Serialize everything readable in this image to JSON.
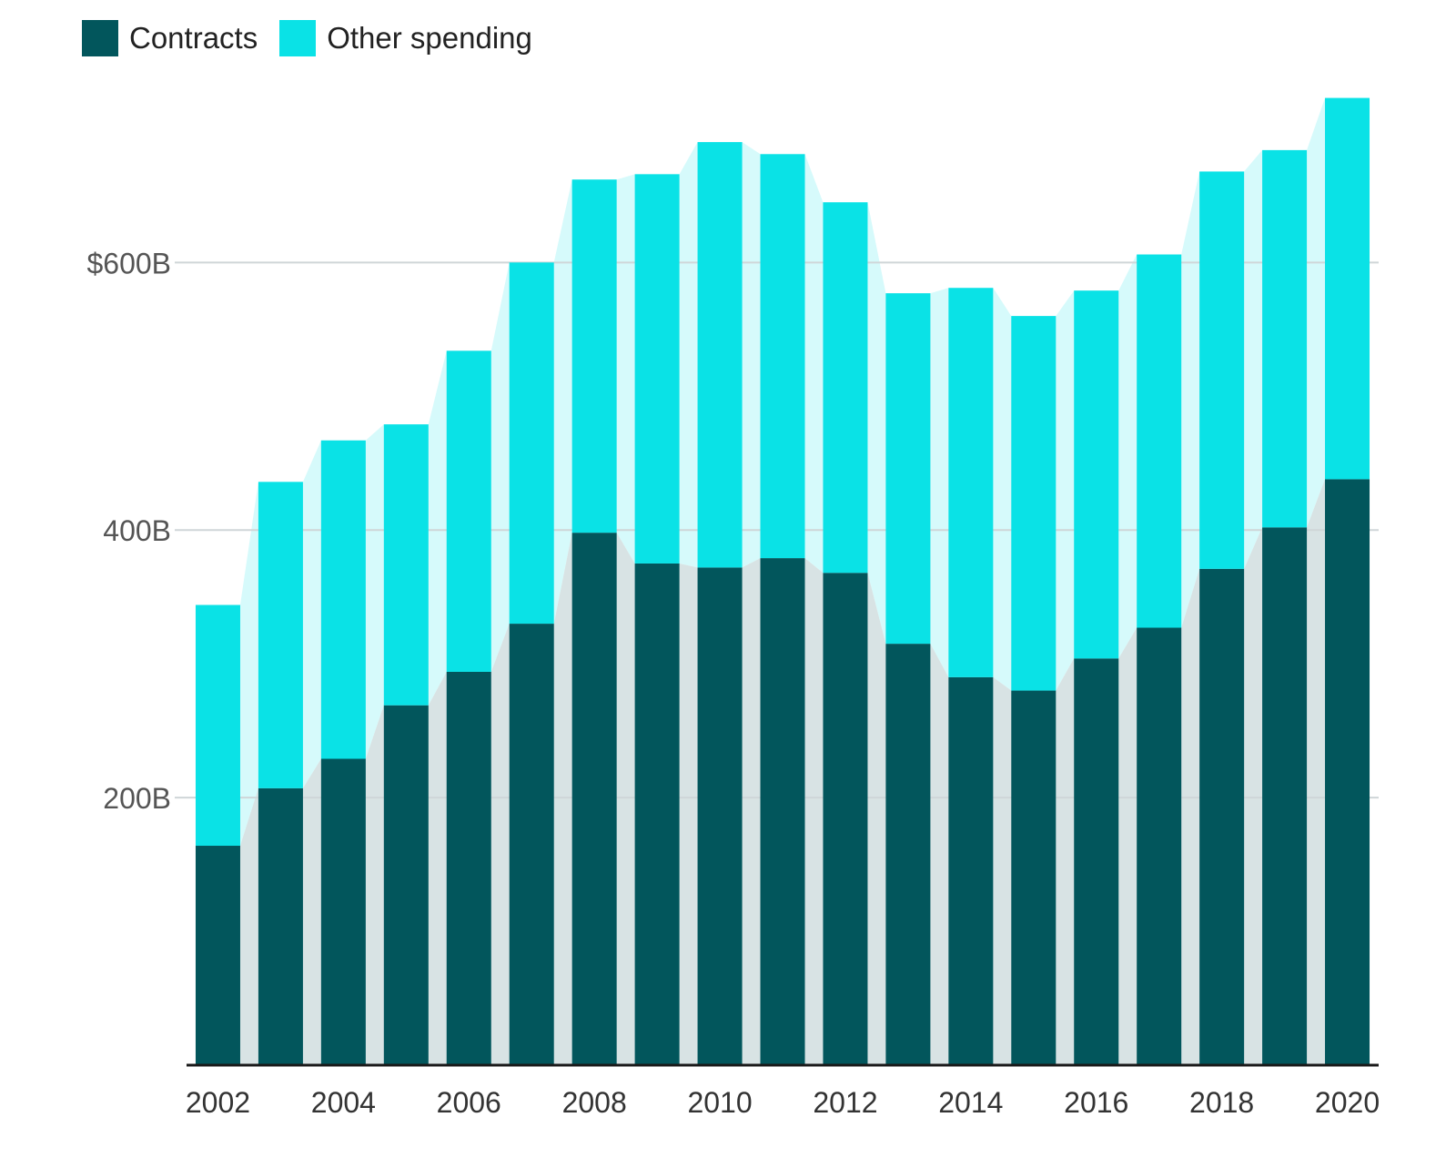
{
  "chart_data": {
    "type": "bar",
    "stacked": true,
    "title": "",
    "xlabel": "",
    "ylabel": "",
    "ylim": [
      0,
      720
    ],
    "legend_position": "top-left",
    "grid": true,
    "categories": [
      "2002",
      "2003",
      "2004",
      "2005",
      "2006",
      "2007",
      "2008",
      "2009",
      "2010",
      "2011",
      "2012",
      "2013",
      "2014",
      "2015",
      "2016",
      "2017",
      "2018",
      "2019",
      "2020"
    ],
    "x_tick_labels": [
      "2002",
      "",
      "2004",
      "",
      "2006",
      "",
      "2008",
      "",
      "2010",
      "",
      "2012",
      "",
      "2014",
      "",
      "2016",
      "",
      "2018",
      "",
      "2020"
    ],
    "y_ticks": [
      200,
      400,
      600
    ],
    "y_tick_labels": [
      "200B",
      "400B",
      "$600B"
    ],
    "series": [
      {
        "name": "Contracts",
        "color": "#02565c",
        "band_color": "#d8e3e4",
        "values": [
          164,
          207,
          229,
          269,
          294,
          330,
          398,
          375,
          372,
          379,
          368,
          315,
          290,
          280,
          304,
          327,
          371,
          402,
          438
        ]
      },
      {
        "name": "Other spending",
        "color": "#0ae2e6",
        "band_color": "#d6fafb",
        "values": [
          180,
          229,
          238,
          210,
          240,
          270,
          264,
          291,
          318,
          302,
          277,
          262,
          291,
          280,
          275,
          279,
          297,
          282,
          285
        ]
      }
    ]
  }
}
